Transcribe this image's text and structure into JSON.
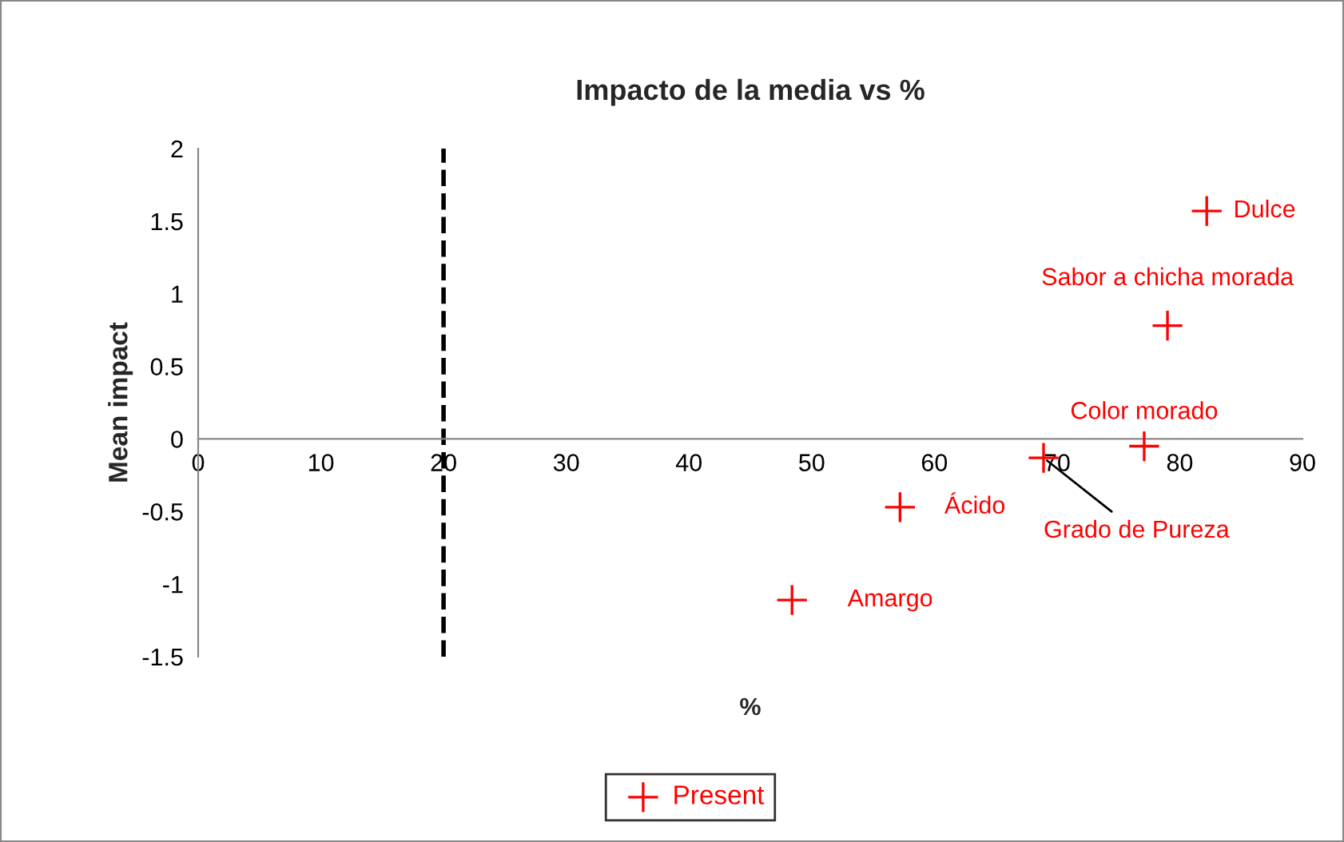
{
  "chart_data": {
    "type": "scatter",
    "title": "Impacto de la media vs %",
    "xlabel": "%",
    "ylabel": "Mean impact",
    "series": [
      {
        "name": "Present",
        "color": "#ff0000",
        "x": [
          82.2,
          79.0,
          77.1,
          68.9,
          57.2,
          48.4
        ],
        "values": [
          1.57,
          0.78,
          -0.05,
          -0.13,
          -0.47,
          -1.11
        ]
      }
    ],
    "annotations": [
      {
        "text": "Dulce",
        "x": 82.2,
        "y": 1.57
      },
      {
        "text": "Sabor a chicha morada",
        "x": 79.0,
        "y": 0.78
      },
      {
        "text": "Color morado",
        "x": 77.1,
        "y": -0.05
      },
      {
        "text": "Grado de Pureza",
        "x": 68.9,
        "y": -0.13
      },
      {
        "text": "Ácido",
        "x": 57.2,
        "y": -0.47
      },
      {
        "text": "Amargo",
        "x": 48.4,
        "y": -1.11
      }
    ],
    "ref_lines": [
      {
        "axis": "x",
        "value": 20,
        "color": "#000000",
        "line_style": "dashed"
      }
    ],
    "xlim": [
      0,
      90
    ],
    "xticks": [
      0,
      10,
      20,
      30,
      40,
      50,
      60,
      70,
      80,
      90
    ],
    "ylim": [
      -1.5,
      2
    ],
    "yticks": [
      -1.5,
      -1,
      -0.5,
      0,
      0.5,
      1,
      1.5,
      2
    ],
    "marker": "cross",
    "grid": false,
    "legend": "bottom"
  }
}
